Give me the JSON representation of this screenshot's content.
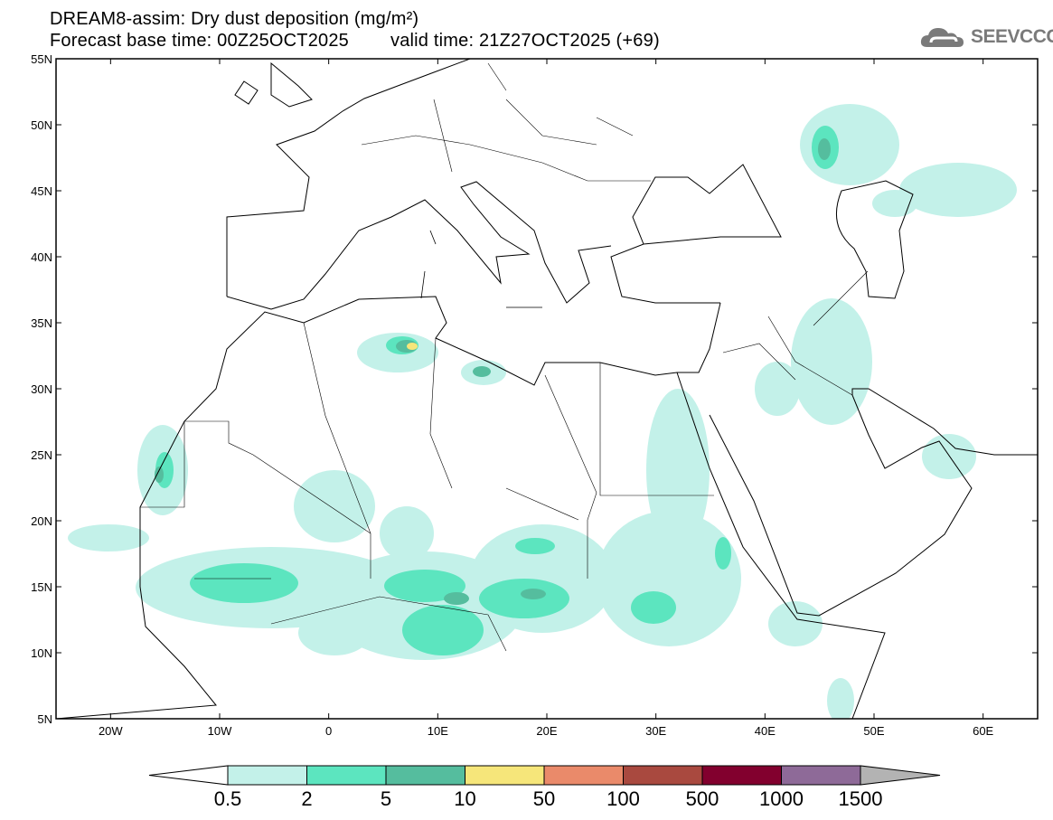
{
  "title": {
    "line1": "DREAM8-assim: Dry dust deposition (mg/m²)",
    "base_time": "Forecast base time: 00Z25OCT2025",
    "valid_time": "valid time: 21Z27OCT2025 (+69)"
  },
  "logo": {
    "text": "SEEVCCC",
    "icon": "cloud-icon"
  },
  "chart_data": {
    "type": "map",
    "title": "DREAM8-assim: Dry dust deposition (mg/m²)",
    "xlim": [
      -25,
      65
    ],
    "ylim": [
      5,
      55
    ],
    "x_ticks": [
      -20,
      -10,
      0,
      10,
      20,
      30,
      40,
      50,
      60
    ],
    "x_tick_labels": [
      "20W",
      "10W",
      "0",
      "10E",
      "20E",
      "30E",
      "40E",
      "50E",
      "60E"
    ],
    "y_ticks": [
      5,
      10,
      15,
      20,
      25,
      30,
      35,
      40,
      45,
      50,
      55
    ],
    "y_tick_labels": [
      "5N",
      "10N",
      "15N",
      "20N",
      "25N",
      "30N",
      "35N",
      "40N",
      "45N",
      "50N",
      "55N"
    ],
    "colorbar": {
      "levels": [
        "0.5",
        "2",
        "5",
        "10",
        "50",
        "100",
        "500",
        "1000",
        "1500"
      ],
      "colors": [
        "#c3f1e9",
        "#5ce5bf",
        "#55bd9e",
        "#f6e67a",
        "#ea8a6a",
        "#a9493f",
        "#82002e",
        "#8e6a98"
      ],
      "under_color": "#ffffff",
      "over_color": "#b3b3b3"
    }
  }
}
